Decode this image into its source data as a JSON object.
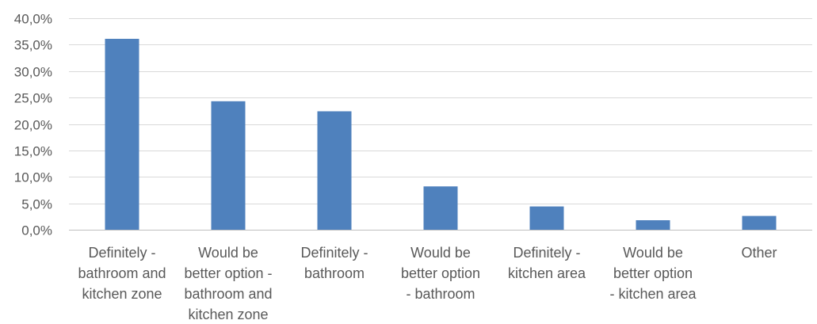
{
  "chart_data": {
    "type": "bar",
    "title": "",
    "xlabel": "",
    "ylabel": "",
    "categories": [
      [
        "Definitely -",
        "bathroom and",
        "kitchen zone"
      ],
      [
        "Would be",
        "better option -",
        "bathroom and",
        "kitchen zone"
      ],
      [
        "Definitely -",
        "bathroom"
      ],
      [
        "Would be",
        "better option",
        "- bathroom"
      ],
      [
        "Definitely -",
        "kitchen area"
      ],
      [
        "Would be",
        "better option",
        "- kitchen area"
      ],
      [
        "Other"
      ]
    ],
    "values": [
      36.1,
      24.3,
      22.4,
      8.2,
      4.4,
      1.8,
      2.6
    ],
    "ylim": [
      0,
      40
    ],
    "ytick_step": 5,
    "ytick_labels": [
      "0,0%",
      "5,0%",
      "10,0%",
      "15,0%",
      "20,0%",
      "25,0%",
      "30,0%",
      "35,0%",
      "40,0%"
    ],
    "grid": true,
    "legend": "none",
    "colors": {
      "bar": "#4f81bd",
      "grid": "#d9d9d9",
      "axis": "#bfbfbf",
      "text": "#595959"
    }
  }
}
